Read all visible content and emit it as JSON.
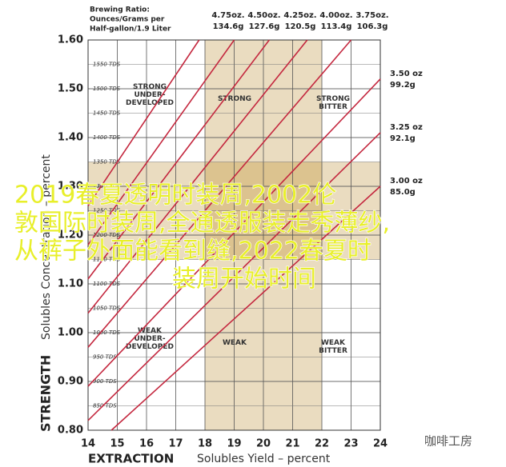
{
  "chart_data": {
    "type": "line",
    "header": [
      "Brewing Ratio:",
      "Ounces/Grams per",
      "Half-gallon/1.9 Liter"
    ],
    "y_title": "STRENGTH",
    "y_subtitle": "Solubles Concentration – percent",
    "x_title": "EXTRACTION",
    "x_subtitle": "Solubles Yield – percent",
    "xlim": [
      14,
      24
    ],
    "xticks": [
      14,
      15,
      16,
      17,
      18,
      19,
      20,
      21,
      22,
      23,
      24
    ],
    "ylim": [
      0.8,
      1.6
    ],
    "yticks": [
      {
        "value": 0.8,
        "label": "0.80"
      },
      {
        "value": 0.9,
        "label": "0.90"
      },
      {
        "value": 1.0,
        "label": "1.00"
      },
      {
        "value": 1.1,
        "label": "1.10"
      },
      {
        "value": 1.2,
        "label": "1.20"
      },
      {
        "value": 1.3,
        "label": "1.30"
      },
      {
        "value": 1.4,
        "label": "1.40"
      },
      {
        "value": 1.5,
        "label": "1.50"
      },
      {
        "value": 1.6,
        "label": "1.60"
      }
    ],
    "tds_ticks": [
      {
        "value": 1.55,
        "label": "1550 TDS"
      },
      {
        "value": 1.5,
        "label": "1500 TDS"
      },
      {
        "value": 1.45,
        "label": "1450 TDS"
      },
      {
        "value": 1.4,
        "label": "1400 TDS"
      },
      {
        "value": 1.35,
        "label": "1350 TDS"
      },
      {
        "value": 1.3,
        "label": "1300 TDS"
      },
      {
        "value": 1.25,
        "label": "1250 TDS"
      },
      {
        "value": 1.2,
        "label": "1200 TDS"
      },
      {
        "value": 1.15,
        "label": "1150 TDS"
      },
      {
        "value": 1.1,
        "label": "1100 TDS"
      },
      {
        "value": 1.05,
        "label": "1050 TDS"
      },
      {
        "value": 1.0,
        "label": "1000 TDS"
      },
      {
        "value": 0.95,
        "label": "950 TDS"
      },
      {
        "value": 0.9,
        "label": "900 TDS"
      },
      {
        "value": 0.85,
        "label": "850 TDS"
      }
    ],
    "grid": true,
    "ideal_x": [
      18,
      22
    ],
    "ideal_y": [
      1.15,
      1.35
    ],
    "series": [
      {
        "name": "4.75oz.",
        "grams": "134.6g",
        "color": "#c4283f",
        "x": [
          14,
          17.8
        ],
        "values": [
          1.26,
          1.6
        ]
      },
      {
        "name": "4.50oz.",
        "grams": "127.6g",
        "color": "#c4283f",
        "x": [
          14,
          19.0
        ],
        "values": [
          1.18,
          1.6
        ]
      },
      {
        "name": "4.25oz.",
        "grams": "120.5g",
        "color": "#c4283f",
        "x": [
          14,
          20.2
        ],
        "values": [
          1.11,
          1.6
        ]
      },
      {
        "name": "4.00oz.",
        "grams": "113.4g",
        "color": "#c4283f",
        "x": [
          14,
          21.5
        ],
        "values": [
          1.04,
          1.6
        ]
      },
      {
        "name": "3.75oz.",
        "grams": "106.3g",
        "color": "#c4283f",
        "x": [
          14,
          23.0
        ],
        "values": [
          0.97,
          1.6
        ]
      },
      {
        "name": "3.50 oz",
        "grams": "99.2g",
        "color": "#c4283f",
        "x": [
          14,
          24
        ],
        "values": [
          0.89,
          1.52
        ]
      },
      {
        "name": "3.25 oz",
        "grams": "92.1g",
        "color": "#c4283f",
        "x": [
          14,
          24
        ],
        "values": [
          0.82,
          1.41
        ]
      },
      {
        "name": "3.00 oz",
        "grams": "85.0g",
        "color": "#c4283f",
        "x": [
          14.8,
          24
        ],
        "values": [
          0.8,
          1.3
        ]
      }
    ],
    "regions": [
      "STRONG\nUNDER-\nDEVELOPED",
      "STRONG",
      "STRONG\nBITTER",
      "WEAK\nUNDER-\nDEVELOPED",
      "WEAK",
      "WEAK\nBITTER"
    ]
  },
  "overlay_text": [
    "2019春夏透明时装周,2002伦",
    "敦国际时装周,全通透服装走秀薄纱,",
    "从裤子外面能看到缝,2022春夏时",
    "装周开始时间"
  ],
  "watermark": "咖啡工房"
}
